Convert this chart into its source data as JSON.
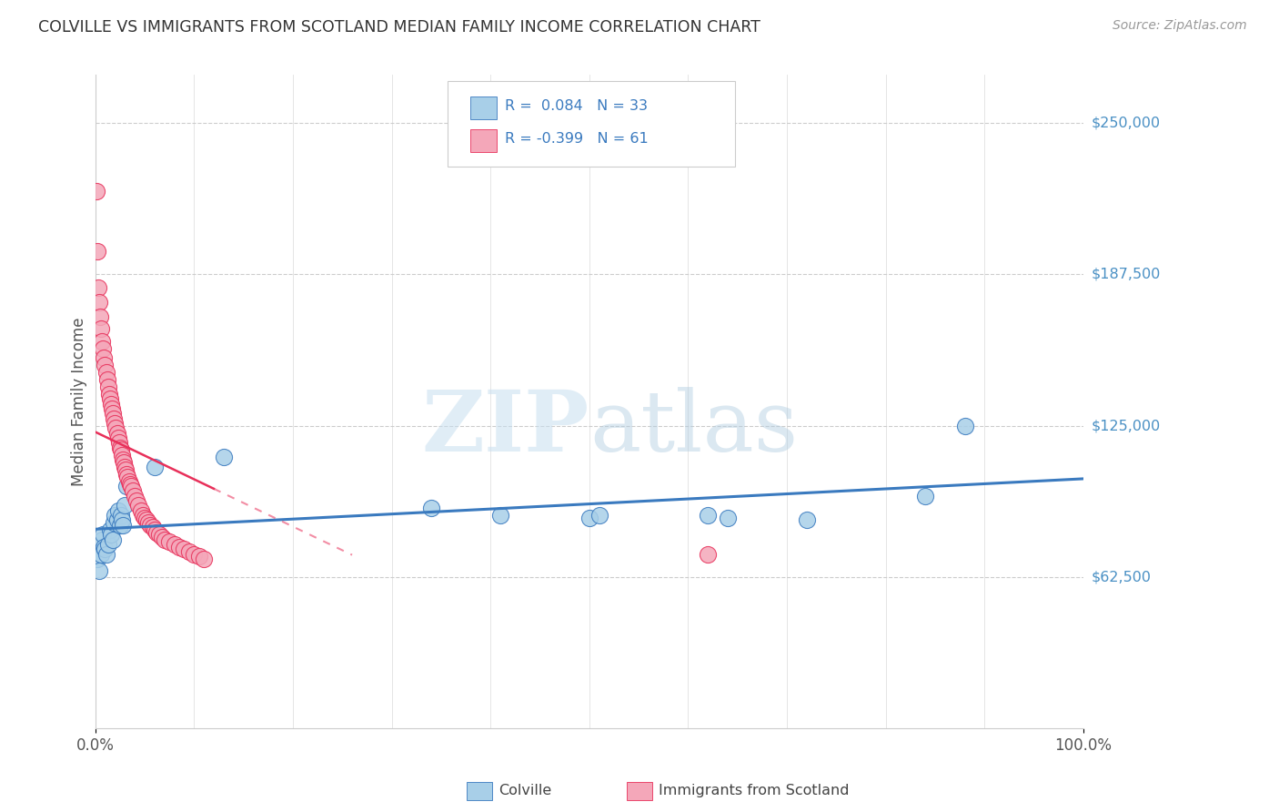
{
  "title": "COLVILLE VS IMMIGRANTS FROM SCOTLAND MEDIAN FAMILY INCOME CORRELATION CHART",
  "source": "Source: ZipAtlas.com",
  "ylabel": "Median Family Income",
  "yticks": [
    62500,
    125000,
    187500,
    250000
  ],
  "ytick_labels": [
    "$62,500",
    "$125,000",
    "$187,500",
    "$250,000"
  ],
  "ylim": [
    0,
    270000
  ],
  "xlim": [
    0.0,
    1.0
  ],
  "legend_label1": "Colville",
  "legend_label2": "Immigrants from Scotland",
  "r1": 0.084,
  "n1": 33,
  "r2": -0.399,
  "n2": 61,
  "watermark_zip": "ZIP",
  "watermark_atlas": "atlas",
  "color_blue": "#a8cfe8",
  "color_pink": "#f4a7b9",
  "color_blue_line": "#3a7abf",
  "color_pink_line": "#e8305a",
  "color_pink_line_dash": "#e8305a",
  "background_color": "#ffffff",
  "colville_x": [
    0.002,
    0.004,
    0.006,
    0.007,
    0.008,
    0.009,
    0.01,
    0.011,
    0.013,
    0.015,
    0.016,
    0.018,
    0.019,
    0.02,
    0.022,
    0.023,
    0.025,
    0.026,
    0.027,
    0.028,
    0.03,
    0.032,
    0.06,
    0.13,
    0.34,
    0.41,
    0.5,
    0.51,
    0.62,
    0.64,
    0.72,
    0.84,
    0.88
  ],
  "colville_y": [
    70000,
    65000,
    72000,
    78000,
    80000,
    75000,
    74000,
    72000,
    76000,
    82000,
    80000,
    78000,
    85000,
    88000,
    86000,
    90000,
    84000,
    88000,
    86000,
    84000,
    92000,
    100000,
    108000,
    112000,
    91000,
    88000,
    87000,
    88000,
    88000,
    87000,
    86000,
    96000,
    125000
  ],
  "scotland_x": [
    0.001,
    0.002,
    0.003,
    0.004,
    0.005,
    0.006,
    0.007,
    0.008,
    0.009,
    0.01,
    0.011,
    0.012,
    0.013,
    0.014,
    0.015,
    0.016,
    0.017,
    0.018,
    0.019,
    0.02,
    0.021,
    0.022,
    0.023,
    0.024,
    0.025,
    0.026,
    0.027,
    0.028,
    0.029,
    0.03,
    0.031,
    0.032,
    0.033,
    0.034,
    0.035,
    0.036,
    0.038,
    0.04,
    0.042,
    0.044,
    0.046,
    0.048,
    0.05,
    0.052,
    0.054,
    0.056,
    0.058,
    0.06,
    0.062,
    0.065,
    0.068,
    0.07,
    0.075,
    0.08,
    0.085,
    0.09,
    0.095,
    0.1,
    0.105,
    0.11,
    0.62
  ],
  "scotland_y": [
    222000,
    197000,
    182000,
    176000,
    170000,
    165000,
    160000,
    157000,
    153000,
    150000,
    147000,
    144000,
    141000,
    138000,
    136000,
    134000,
    132000,
    130000,
    128000,
    126000,
    124000,
    122000,
    120000,
    118000,
    116000,
    115000,
    113000,
    111000,
    110000,
    108000,
    107000,
    105000,
    104000,
    102000,
    101000,
    100000,
    98000,
    96000,
    94000,
    92000,
    90000,
    88000,
    87000,
    86000,
    85000,
    84000,
    83000,
    82000,
    81000,
    80000,
    79000,
    78000,
    77000,
    76000,
    75000,
    74000,
    73000,
    72000,
    71000,
    70000,
    72000
  ]
}
